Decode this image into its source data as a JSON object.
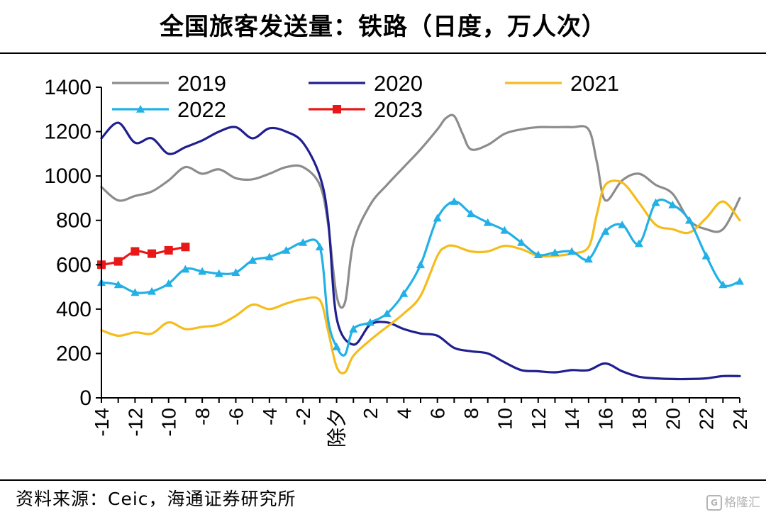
{
  "title": "全国旅客发送量：铁路（日度，万人次）",
  "source": "资料来源：Ceic，海通证券研究所",
  "watermark": "格隆汇",
  "colors": {
    "2019": "#8c8c8c",
    "2020": "#1f1f8f",
    "2021": "#f5bc1c",
    "2022": "#22b0e6",
    "2023": "#e81818"
  },
  "chart_data": {
    "type": "line",
    "title": "全国旅客发送量：铁路（日度，万人次）",
    "xlabel": "",
    "ylabel": "",
    "ylim": [
      0,
      1400
    ],
    "xlim": [
      -14,
      24
    ],
    "grid": false,
    "legend_position": "top",
    "yticks": [
      "0",
      "200",
      "400",
      "600",
      "800",
      "1000",
      "1200",
      "1400"
    ],
    "xticks": [
      "-14",
      "-12",
      "-10",
      "-8",
      "-6",
      "-4",
      "-2",
      "除夕",
      "2",
      "4",
      "6",
      "8",
      "10",
      "12",
      "14",
      "16",
      "18",
      "20",
      "22",
      "24"
    ],
    "series": [
      {
        "name": "2019",
        "marker": "none",
        "points": [
          [
            -14,
            950
          ],
          [
            -13,
            890
          ],
          [
            -12,
            910
          ],
          [
            -11,
            930
          ],
          [
            -10,
            980
          ],
          [
            -9,
            1040
          ],
          [
            -8,
            1010
          ],
          [
            -7,
            1030
          ],
          [
            -6,
            990
          ],
          [
            -5,
            985
          ],
          [
            -4,
            1010
          ],
          [
            -3,
            1040
          ],
          [
            -2,
            1040
          ],
          [
            -1,
            960
          ],
          [
            -0.5,
            780
          ],
          [
            0,
            460
          ],
          [
            0.5,
            430
          ],
          [
            1,
            700
          ],
          [
            2,
            870
          ],
          [
            3,
            960
          ],
          [
            4,
            1040
          ],
          [
            5,
            1120
          ],
          [
            6,
            1210
          ],
          [
            6.5,
            1260
          ],
          [
            7,
            1270
          ],
          [
            7.5,
            1190
          ],
          [
            8,
            1120
          ],
          [
            9,
            1140
          ],
          [
            10,
            1190
          ],
          [
            11,
            1210
          ],
          [
            12,
            1220
          ],
          [
            13,
            1220
          ],
          [
            14,
            1220
          ],
          [
            15,
            1210
          ],
          [
            15.5,
            1060
          ],
          [
            16,
            890
          ],
          [
            17,
            980
          ],
          [
            18,
            1010
          ],
          [
            19,
            960
          ],
          [
            20,
            920
          ],
          [
            21,
            800
          ],
          [
            22,
            760
          ],
          [
            23,
            760
          ],
          [
            24,
            900
          ]
        ]
      },
      {
        "name": "2020",
        "marker": "none",
        "points": [
          [
            -14,
            1170
          ],
          [
            -13,
            1240
          ],
          [
            -12,
            1150
          ],
          [
            -11,
            1170
          ],
          [
            -10,
            1100
          ],
          [
            -9,
            1130
          ],
          [
            -8,
            1160
          ],
          [
            -7,
            1200
          ],
          [
            -6,
            1220
          ],
          [
            -5,
            1170
          ],
          [
            -4,
            1215
          ],
          [
            -3,
            1200
          ],
          [
            -2,
            1150
          ],
          [
            -1,
            1000
          ],
          [
            -0.5,
            800
          ],
          [
            0,
            360
          ],
          [
            1,
            240
          ],
          [
            2,
            330
          ],
          [
            3,
            340
          ],
          [
            4,
            310
          ],
          [
            5,
            290
          ],
          [
            6,
            280
          ],
          [
            7,
            225
          ],
          [
            8,
            210
          ],
          [
            9,
            200
          ],
          [
            10,
            160
          ],
          [
            11,
            125
          ],
          [
            12,
            120
          ],
          [
            13,
            115
          ],
          [
            14,
            125
          ],
          [
            15,
            125
          ],
          [
            16,
            155
          ],
          [
            17,
            120
          ],
          [
            18,
            95
          ],
          [
            19,
            88
          ],
          [
            20,
            85
          ],
          [
            21,
            85
          ],
          [
            22,
            88
          ],
          [
            23,
            98
          ],
          [
            24,
            98
          ]
        ]
      },
      {
        "name": "2021",
        "marker": "none",
        "points": [
          [
            -14,
            305
          ],
          [
            -13,
            280
          ],
          [
            -12,
            295
          ],
          [
            -11,
            290
          ],
          [
            -10,
            340
          ],
          [
            -9,
            310
          ],
          [
            -8,
            320
          ],
          [
            -7,
            330
          ],
          [
            -6,
            370
          ],
          [
            -5,
            420
          ],
          [
            -4,
            400
          ],
          [
            -3,
            425
          ],
          [
            -2,
            445
          ],
          [
            -1,
            440
          ],
          [
            -0.5,
            300
          ],
          [
            0,
            140
          ],
          [
            0.5,
            115
          ],
          [
            1,
            190
          ],
          [
            2,
            260
          ],
          [
            3,
            320
          ],
          [
            4,
            380
          ],
          [
            5,
            460
          ],
          [
            6,
            640
          ],
          [
            6.5,
            680
          ],
          [
            7,
            685
          ],
          [
            8,
            660
          ],
          [
            9,
            660
          ],
          [
            10,
            685
          ],
          [
            11,
            670
          ],
          [
            12,
            640
          ],
          [
            13,
            640
          ],
          [
            14,
            650
          ],
          [
            15,
            680
          ],
          [
            15.5,
            830
          ],
          [
            16,
            960
          ],
          [
            17,
            970
          ],
          [
            18,
            880
          ],
          [
            19,
            780
          ],
          [
            20,
            760
          ],
          [
            21,
            745
          ],
          [
            22,
            810
          ],
          [
            23,
            885
          ],
          [
            24,
            800
          ]
        ]
      },
      {
        "name": "2022",
        "marker": "triangle",
        "points": [
          [
            -14,
            520
          ],
          [
            -13,
            510
          ],
          [
            -12,
            475
          ],
          [
            -11,
            480
          ],
          [
            -10,
            515
          ],
          [
            -9,
            580
          ],
          [
            -8,
            570
          ],
          [
            -7,
            560
          ],
          [
            -6,
            565
          ],
          [
            -5,
            620
          ],
          [
            -4,
            635
          ],
          [
            -3,
            665
          ],
          [
            -2,
            700
          ],
          [
            -1,
            680
          ],
          [
            -0.5,
            350
          ],
          [
            0,
            230
          ],
          [
            0.5,
            195
          ],
          [
            1,
            310
          ],
          [
            2,
            340
          ],
          [
            3,
            380
          ],
          [
            4,
            470
          ],
          [
            5,
            600
          ],
          [
            6,
            810
          ],
          [
            7,
            885
          ],
          [
            8,
            830
          ],
          [
            9,
            790
          ],
          [
            10,
            755
          ],
          [
            11,
            700
          ],
          [
            12,
            645
          ],
          [
            13,
            655
          ],
          [
            14,
            660
          ],
          [
            15,
            625
          ],
          [
            16,
            750
          ],
          [
            17,
            780
          ],
          [
            18,
            695
          ],
          [
            19,
            880
          ],
          [
            20,
            870
          ],
          [
            21,
            800
          ],
          [
            22,
            640
          ],
          [
            23,
            510
          ],
          [
            24,
            525
          ]
        ]
      },
      {
        "name": "2023",
        "marker": "square",
        "points": [
          [
            -14,
            600
          ],
          [
            -13,
            615
          ],
          [
            -12,
            660
          ],
          [
            -11,
            650
          ],
          [
            -10,
            665
          ],
          [
            -9,
            680
          ]
        ]
      }
    ]
  }
}
